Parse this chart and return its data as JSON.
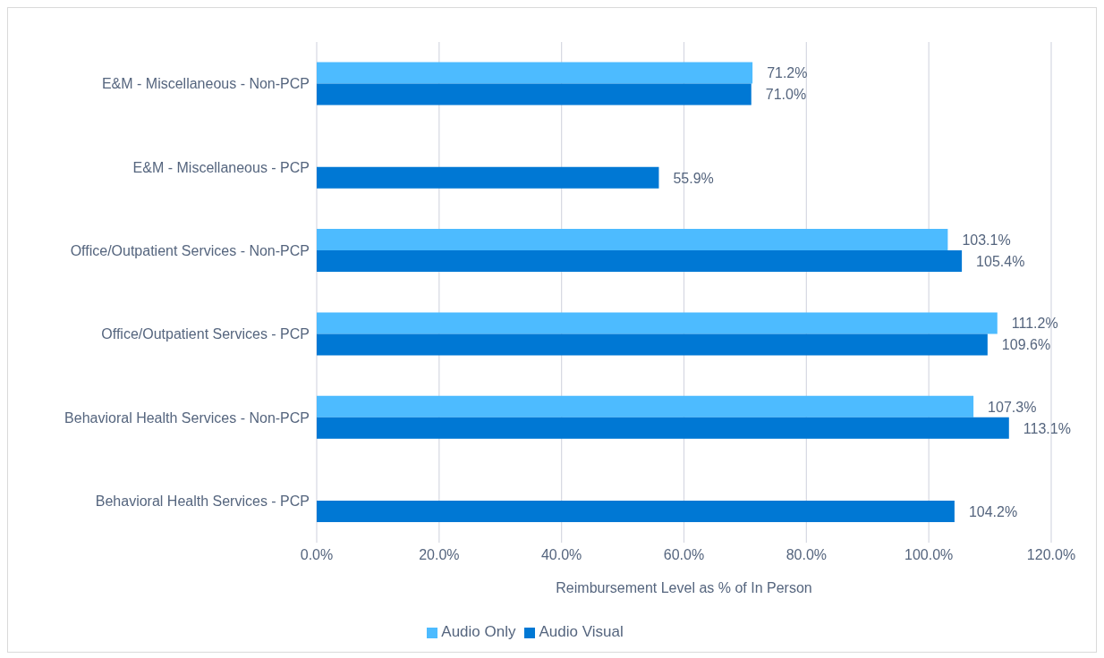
{
  "chart_data": {
    "type": "bar",
    "orientation": "horizontal",
    "xlabel": "Reimbursement Level as % of In Person",
    "categories": [
      "E&M - Miscellaneous - Non-PCP",
      "E&M - Miscellaneous - PCP",
      "Office/Outpatient Services - Non-PCP",
      "Office/Outpatient Services - PCP",
      "Behavioral Health Services - Non-PCP",
      "Behavioral Health Services - PCP"
    ],
    "series": [
      {
        "name": "Audio Only",
        "color": "#4dbbff",
        "values": [
          71.2,
          null,
          103.1,
          111.2,
          107.3,
          null
        ],
        "value_labels": [
          "71.2%",
          null,
          "103.1%",
          "111.2%",
          "107.3%",
          null
        ]
      },
      {
        "name": "Audio Visual",
        "color": "#0078d4",
        "values": [
          71.0,
          55.9,
          105.4,
          109.6,
          113.1,
          104.2
        ],
        "value_labels": [
          "71.0%",
          "55.9%",
          "105.4%",
          "109.6%",
          "113.1%",
          "104.2%"
        ]
      }
    ],
    "xlim": [
      0,
      120
    ],
    "xticks": [
      {
        "value": 0,
        "label": "0.0%"
      },
      {
        "value": 20,
        "label": "20.0%"
      },
      {
        "value": 40,
        "label": "40.0%"
      },
      {
        "value": 60,
        "label": "60.0%"
      },
      {
        "value": 80,
        "label": "80.0%"
      },
      {
        "value": 100,
        "label": "100.0%"
      },
      {
        "value": 120,
        "label": "120.0%"
      }
    ],
    "grid": "x",
    "legend": "bottom"
  }
}
